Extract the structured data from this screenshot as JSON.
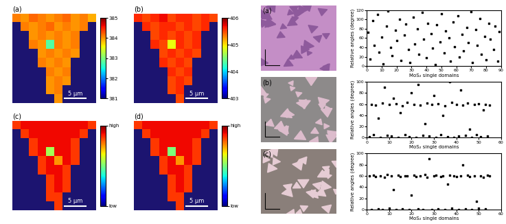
{
  "chart_data": [
    {
      "type": "heatmap",
      "title": "(a)",
      "annotations": [
        "5 μm"
      ],
      "tick_labels": false,
      "colorbar_range": [
        381,
        385
      ],
      "colorbar_ticks": [
        381,
        382,
        383,
        384,
        385
      ],
      "cells": [
        [
          384.1,
          384.0,
          384.2,
          384.1,
          384.0,
          384.1,
          384.2,
          384.0,
          384.1,
          383.9
        ],
        [
          null,
          384.1,
          384.0,
          384.1,
          384.2,
          384.0,
          384.1,
          384.0,
          384.1,
          null
        ],
        [
          null,
          null,
          384.0,
          384.1,
          384.0,
          384.1,
          384.0,
          384.1,
          null,
          null
        ],
        [
          null,
          null,
          384.1,
          384.0,
          382.8,
          384.1,
          384.0,
          384.1,
          null,
          null
        ],
        [
          null,
          null,
          null,
          384.0,
          384.1,
          384.0,
          384.1,
          384.0,
          null,
          null
        ],
        [
          null,
          null,
          null,
          384.1,
          384.0,
          384.1,
          384.0,
          null,
          null,
          null
        ],
        [
          null,
          null,
          null,
          null,
          384.1,
          384.0,
          384.1,
          null,
          null,
          null
        ],
        [
          null,
          null,
          null,
          null,
          384.0,
          384.1,
          384.0,
          null,
          null,
          null
        ],
        [
          null,
          null,
          null,
          null,
          384.0,
          384.1,
          null,
          null,
          null,
          null
        ],
        [
          null,
          null,
          null,
          null,
          null,
          384.0,
          null,
          null,
          null,
          null
        ]
      ]
    },
    {
      "type": "heatmap",
      "title": "(b)",
      "annotations": [
        "5 μm"
      ],
      "tick_labels": false,
      "colorbar_range": [
        403,
        406
      ],
      "colorbar_ticks": [
        403,
        404,
        405,
        406
      ],
      "cells": [
        [
          405.6,
          405.5,
          405.6,
          405.7,
          405.5,
          405.6,
          405.6,
          405.5,
          405.6,
          405.5
        ],
        [
          null,
          405.6,
          405.5,
          405.6,
          405.6,
          405.5,
          405.6,
          405.5,
          405.6,
          null
        ],
        [
          null,
          null,
          405.5,
          405.6,
          405.5,
          405.6,
          405.5,
          405.6,
          null,
          null
        ],
        [
          null,
          null,
          405.6,
          405.5,
          404.9,
          405.6,
          405.5,
          405.6,
          null,
          null
        ],
        [
          null,
          null,
          null,
          405.5,
          405.6,
          405.5,
          405.6,
          405.5,
          null,
          null
        ],
        [
          null,
          null,
          null,
          405.6,
          405.5,
          405.6,
          405.5,
          null,
          null,
          null
        ],
        [
          null,
          null,
          null,
          null,
          405.6,
          405.5,
          405.6,
          null,
          null,
          null
        ],
        [
          null,
          null,
          null,
          null,
          405.5,
          405.6,
          405.5,
          null,
          null,
          null
        ],
        [
          null,
          null,
          null,
          null,
          405.5,
          405.6,
          null,
          null,
          null,
          null
        ],
        [
          null,
          null,
          null,
          null,
          null,
          405.5,
          null,
          null,
          null,
          null
        ]
      ]
    },
    {
      "type": "heatmap",
      "title": "(c)",
      "annotations": [
        "5 μm"
      ],
      "tick_labels": false,
      "colorbar_range": [
        0,
        1
      ],
      "colorbar_ticks": [
        {
          "value": 0,
          "label": "low"
        },
        {
          "value": 1,
          "label": "high"
        }
      ],
      "cells": [
        [
          0.85,
          0.9,
          0.9,
          0.9,
          0.9,
          0.9,
          0.9,
          0.9,
          0.9,
          0.85
        ],
        [
          null,
          0.85,
          0.9,
          0.9,
          0.9,
          0.9,
          0.9,
          0.9,
          0.85,
          null
        ],
        [
          null,
          null,
          0.85,
          0.9,
          0.9,
          0.9,
          0.9,
          0.85,
          null,
          null
        ],
        [
          null,
          null,
          0.85,
          0.9,
          0.55,
          0.9,
          0.9,
          0.85,
          null,
          null
        ],
        [
          null,
          null,
          null,
          0.85,
          0.9,
          0.75,
          0.9,
          0.85,
          null,
          null
        ],
        [
          null,
          null,
          null,
          0.85,
          0.9,
          0.9,
          0.85,
          null,
          null,
          null
        ],
        [
          null,
          null,
          null,
          null,
          0.85,
          0.9,
          0.85,
          null,
          null,
          null
        ],
        [
          null,
          null,
          null,
          null,
          0.85,
          0.9,
          0.85,
          null,
          null,
          null
        ],
        [
          null,
          null,
          null,
          null,
          0.85,
          0.85,
          null,
          null,
          null,
          null
        ],
        [
          null,
          null,
          null,
          null,
          null,
          0.85,
          null,
          null,
          null,
          null
        ]
      ]
    },
    {
      "type": "heatmap",
      "title": "(d)",
      "annotations": [
        "5 μm"
      ],
      "tick_labels": false,
      "colorbar_range": [
        0,
        1
      ],
      "colorbar_ticks": [
        {
          "value": 0,
          "label": "low"
        },
        {
          "value": 1,
          "label": "high"
        }
      ],
      "cells": [
        [
          0.85,
          0.9,
          0.9,
          0.9,
          0.9,
          0.9,
          0.9,
          0.9,
          0.9,
          0.85
        ],
        [
          null,
          0.85,
          0.9,
          0.9,
          0.9,
          0.9,
          0.9,
          0.9,
          0.85,
          null
        ],
        [
          null,
          null,
          0.85,
          0.9,
          0.9,
          0.9,
          0.9,
          0.85,
          null,
          null
        ],
        [
          null,
          null,
          0.85,
          0.9,
          0.5,
          0.9,
          0.9,
          0.85,
          null,
          null
        ],
        [
          null,
          null,
          null,
          0.85,
          0.9,
          0.75,
          0.9,
          0.85,
          null,
          null
        ],
        [
          null,
          null,
          null,
          0.85,
          0.9,
          0.9,
          0.85,
          null,
          null,
          null
        ],
        [
          null,
          null,
          null,
          null,
          0.85,
          0.9,
          0.85,
          null,
          null,
          null
        ],
        [
          null,
          null,
          null,
          null,
          0.85,
          0.9,
          0.85,
          null,
          null,
          null
        ],
        [
          null,
          null,
          null,
          null,
          0.85,
          0.85,
          null,
          null,
          null,
          null
        ],
        [
          null,
          null,
          null,
          null,
          null,
          0.85,
          null,
          null,
          null,
          null
        ]
      ]
    },
    {
      "type": "scatter",
      "x_label": "MoS₂ single domains",
      "y_label": "Relative angles (degree)",
      "color": "#000000",
      "marker": "s",
      "xlim": [
        0,
        90
      ],
      "xticks": [
        0,
        10,
        20,
        30,
        40,
        50,
        60,
        70,
        80,
        90
      ],
      "ylim": [
        0,
        120
      ],
      "yticks": [
        0,
        20,
        40,
        60,
        80,
        100,
        120
      ],
      "x": [
        1,
        2,
        4,
        5,
        7,
        8,
        10,
        11,
        13,
        14,
        16,
        17,
        19,
        20,
        22,
        23,
        25,
        26,
        28,
        29,
        31,
        32,
        34,
        35,
        37,
        38,
        40,
        41,
        43,
        44,
        46,
        47,
        49,
        50,
        52,
        53,
        55,
        56,
        58,
        59,
        61,
        62,
        64,
        65,
        67,
        68,
        70,
        71,
        73,
        74,
        76,
        77,
        79,
        80,
        82,
        83,
        85,
        86,
        88,
        89
      ],
      "values": [
        72,
        15,
        98,
        45,
        110,
        30,
        62,
        5,
        85,
        118,
        40,
        22,
        77,
        55,
        100,
        12,
        66,
        90,
        35,
        8,
        105,
        48,
        80,
        25,
        115,
        58,
        18,
        92,
        70,
        38,
        3,
        88,
        52,
        112,
        28,
        75,
        60,
        10,
        95,
        42,
        108,
        20,
        68,
        33,
        83,
        50,
        116,
        7,
        78,
        45,
        102,
        26,
        64,
        14,
        92,
        57,
        36,
        86,
        11,
        74
      ]
    },
    {
      "type": "scatter",
      "x_label": "MoS₂ single domains",
      "y_label": "Relative angles (degree)",
      "color": "#000000",
      "marker": "s",
      "xlim": [
        0,
        60
      ],
      "xticks": [
        0,
        10,
        20,
        30,
        40,
        50,
        60
      ],
      "ylim": [
        0,
        100
      ],
      "yticks": [
        0,
        20,
        40,
        60,
        80,
        100
      ],
      "x": [
        1,
        2,
        3,
        4,
        5,
        6,
        7,
        8,
        9,
        10,
        11,
        12,
        13,
        14,
        15,
        16,
        17,
        18,
        19,
        20,
        21,
        22,
        23,
        24,
        25,
        26,
        27,
        28,
        29,
        30,
        31,
        32,
        33,
        34,
        35,
        36,
        37,
        38,
        39,
        40,
        41,
        42,
        43,
        44,
        45,
        46,
        47,
        48,
        49,
        50,
        51,
        52,
        53,
        54,
        55
      ],
      "values": [
        2,
        60,
        5,
        58,
        35,
        1,
        62,
        90,
        4,
        59,
        3,
        70,
        61,
        0,
        45,
        57,
        6,
        63,
        2,
        80,
        60,
        1,
        95,
        58,
        4,
        25,
        62,
        3,
        59,
        75,
        0,
        61,
        5,
        40,
        57,
        2,
        100,
        63,
        1,
        60,
        3,
        85,
        58,
        4,
        62,
        15,
        0,
        59,
        6,
        61,
        2,
        50,
        60,
        3,
        58
      ]
    },
    {
      "type": "scatter",
      "x_label": "MoS₂ single domains",
      "y_label": "Relative angles (degree)",
      "color": "#000000",
      "marker": "s",
      "xlim": [
        0,
        60
      ],
      "xticks": [
        0,
        10,
        20,
        30,
        40,
        50,
        60
      ],
      "ylim": [
        0,
        100
      ],
      "yticks": [
        0,
        20,
        40,
        60,
        80,
        100
      ],
      "x": [
        1,
        2,
        3,
        4,
        5,
        6,
        7,
        8,
        9,
        10,
        11,
        12,
        13,
        14,
        15,
        16,
        17,
        18,
        19,
        20,
        21,
        22,
        23,
        24,
        25,
        26,
        27,
        28,
        29,
        30,
        31,
        32,
        33,
        34,
        35,
        36,
        37,
        38,
        39,
        40,
        41,
        42,
        43,
        44,
        45,
        46,
        47,
        48,
        49,
        50,
        51,
        52,
        53,
        54,
        55
      ],
      "values": [
        60,
        0,
        61,
        59,
        1,
        60,
        0,
        58,
        62,
        2,
        60,
        35,
        0,
        61,
        59,
        1,
        60,
        60,
        0,
        25,
        61,
        59,
        1,
        60,
        0,
        62,
        58,
        90,
        0,
        60,
        61,
        1,
        59,
        60,
        0,
        45,
        61,
        2,
        60,
        59,
        0,
        60,
        80,
        1,
        61,
        59,
        0,
        60,
        15,
        2,
        60,
        58,
        1,
        61,
        60
      ]
    }
  ],
  "images": [
    {
      "label": "(a)"
    },
    {
      "label": "(b)"
    },
    {
      "label": "(c)"
    }
  ]
}
